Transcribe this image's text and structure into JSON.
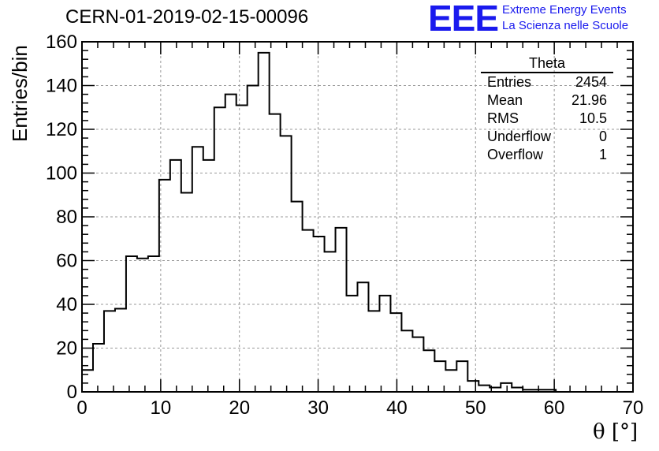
{
  "run_title": "CERN-01-2019-02-15-00096",
  "logo": {
    "mark": "EEE",
    "line1": "Extreme Energy Events",
    "line2": "La Scienza nelle Scuole"
  },
  "stats_box": {
    "title": "Theta",
    "rows": [
      {
        "label": "Entries",
        "value": "2454"
      },
      {
        "label": "Mean",
        "value": "21.96"
      },
      {
        "label": "RMS",
        "value": "10.5"
      },
      {
        "label": "Underflow",
        "value": "0"
      },
      {
        "label": "Overflow",
        "value": "1"
      }
    ]
  },
  "chart_data": {
    "type": "bar",
    "histogram": true,
    "xlabel": "θ [°]",
    "ylabel": "Entries/bin",
    "xlim": [
      0,
      70
    ],
    "ylim": [
      0,
      160
    ],
    "grid": true,
    "bin_width": 1.4,
    "bin_start": 0,
    "x_ticks": [
      "0",
      "10",
      "20",
      "30",
      "40",
      "50",
      "60",
      "70"
    ],
    "y_ticks": [
      "0",
      "20",
      "40",
      "60",
      "80",
      "100",
      "120",
      "140",
      "160"
    ],
    "values": [
      10,
      22,
      37,
      38,
      62,
      61,
      62,
      97,
      106,
      91,
      112,
      106,
      130,
      136,
      131,
      140,
      155,
      127,
      117,
      87,
      74,
      71,
      64,
      75,
      44,
      50,
      37,
      44,
      36,
      28,
      25,
      19,
      14,
      10,
      14,
      5,
      3,
      2,
      4,
      2,
      1,
      1,
      1,
      0,
      0,
      0,
      0,
      0,
      0,
      0
    ]
  }
}
